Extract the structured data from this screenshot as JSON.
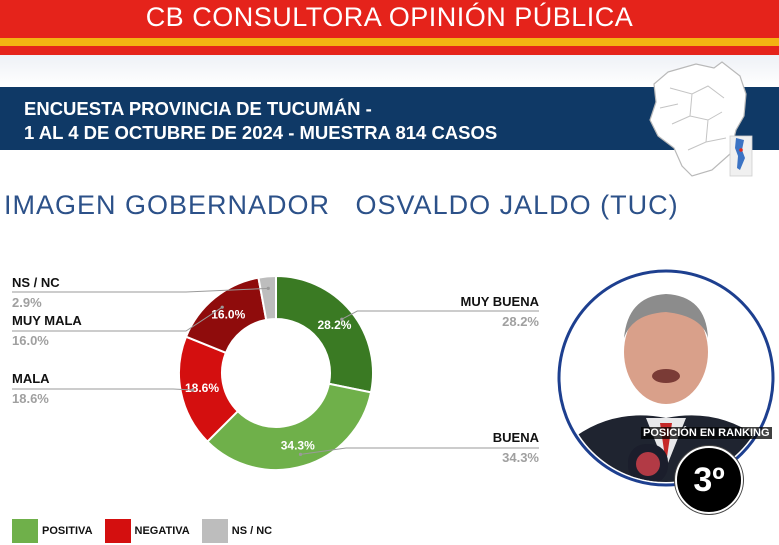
{
  "header": {
    "brand": "CB CONSULTORA OPINIÓN PÚBLICA",
    "survey_line1": "ENCUESTA PROVINCIA DE TUCUMÁN -",
    "survey_line2": "1 AL 4 DE OCTUBRE DE 2024 - MUESTRA 814 CASOS"
  },
  "ranking": {
    "label": "POSICIÓN EN RANKING",
    "position": "3º"
  },
  "legend": [
    {
      "label": "POSITIVA",
      "color": "#6fb04a"
    },
    {
      "label": "NEGATIVA",
      "color": "#d40f0f"
    },
    {
      "label": "NS / NC",
      "color": "#bdbdbd"
    }
  ],
  "chart_data": {
    "type": "pie",
    "title": "IMAGEN GOBERNADOR   OSVALDO JALDO (TUC)",
    "donut": true,
    "slices": [
      {
        "label": "MUY BUENA",
        "value": 28.2,
        "display": "28.2%",
        "color": "#3a7a23"
      },
      {
        "label": "BUENA",
        "value": 34.3,
        "display": "34.3%",
        "color": "#6fb04a"
      },
      {
        "label": "MALA",
        "value": 18.6,
        "display": "18.6%",
        "color": "#d40f0f"
      },
      {
        "label": "MUY MALA",
        "value": 16.0,
        "display": "16.0%",
        "color": "#8f0c0c"
      },
      {
        "label": "NS / NC",
        "value": 2.9,
        "display": "2.9%",
        "color": "#bdbdbd"
      }
    ]
  }
}
